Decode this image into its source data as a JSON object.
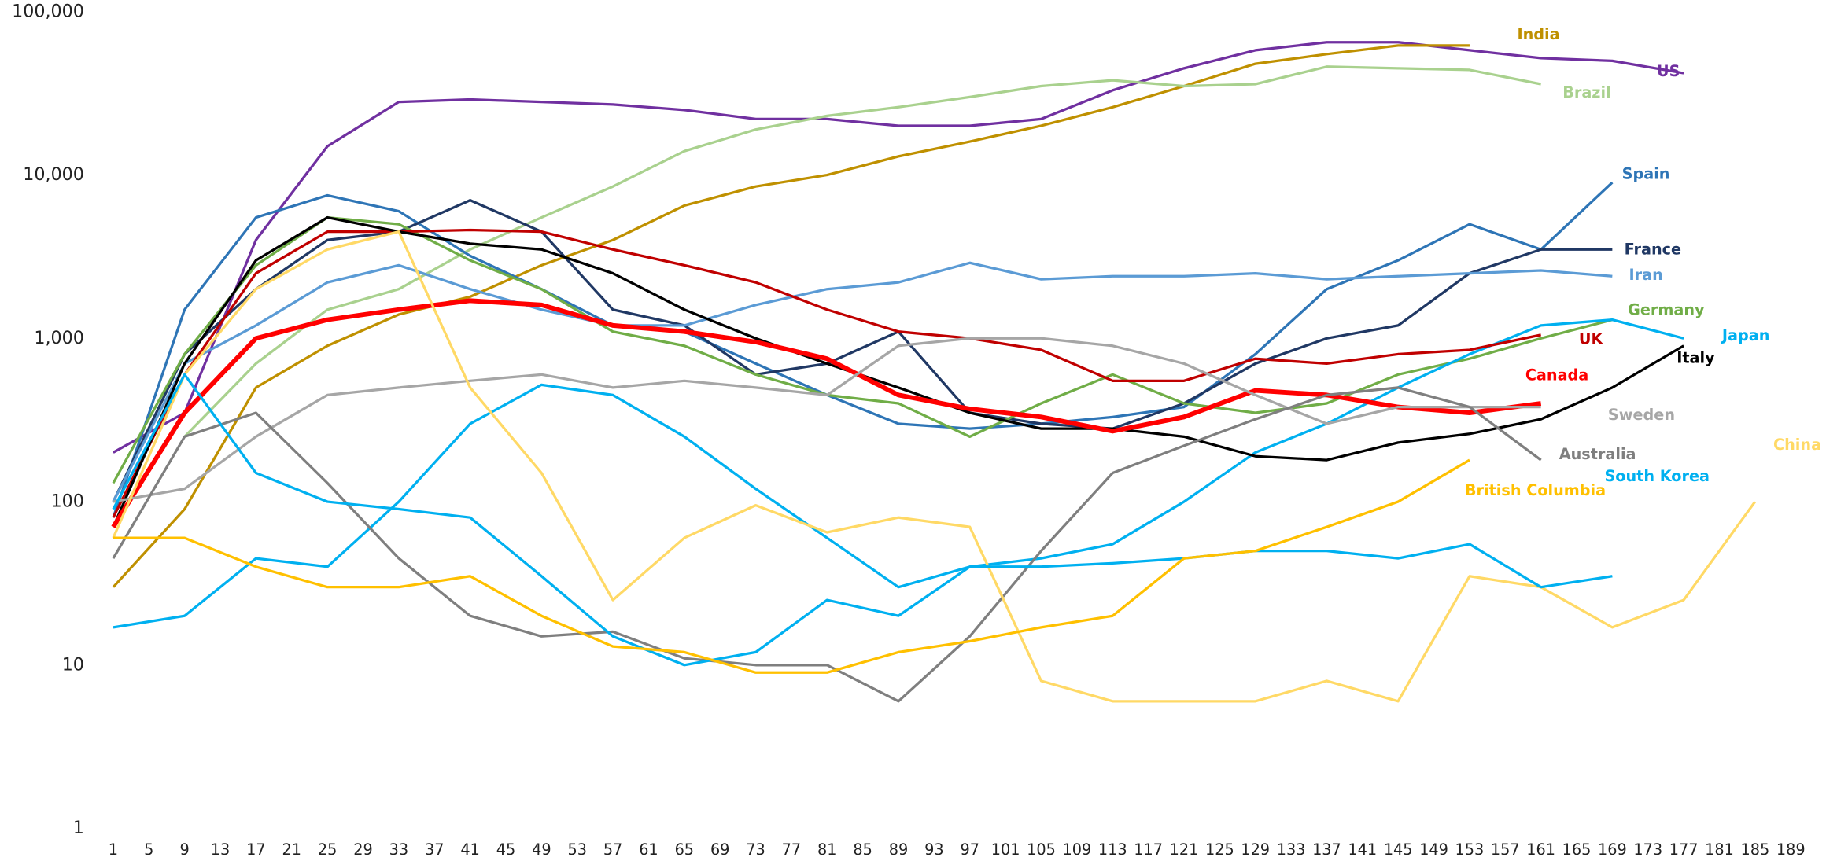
{
  "chart_data": {
    "type": "line",
    "log_scale": true,
    "x": [
      1,
      9,
      17,
      25,
      33,
      41,
      49,
      57,
      65,
      73,
      81,
      89,
      97,
      105,
      113,
      121,
      129,
      137,
      145,
      153,
      161,
      169,
      177,
      185
    ],
    "xlim": [
      1,
      189
    ],
    "xticks": [
      1,
      5,
      9,
      13,
      17,
      21,
      25,
      29,
      33,
      37,
      41,
      45,
      49,
      53,
      57,
      61,
      65,
      69,
      73,
      77,
      81,
      85,
      89,
      93,
      97,
      101,
      105,
      109,
      113,
      117,
      121,
      125,
      129,
      133,
      137,
      141,
      145,
      149,
      153,
      157,
      161,
      165,
      169,
      173,
      177,
      181,
      185,
      189
    ],
    "ylim": [
      1,
      100000
    ],
    "yticks": [
      1,
      10,
      100,
      {
        "value": 1000,
        "label": "1,000"
      },
      {
        "value": 10000,
        "label": "10,000"
      },
      {
        "value": 100000,
        "label": "100,000"
      }
    ],
    "series": [
      {
        "name": "US",
        "color": "#7030a0",
        "values": [
          200,
          350,
          4000,
          15000,
          28000,
          29000,
          28000,
          27000,
          25000,
          22000,
          22000,
          20000,
          20000,
          22000,
          33000,
          45000,
          58000,
          65000,
          65000,
          58000,
          52000,
          50000,
          42000,
          null
        ]
      },
      {
        "name": "India",
        "color": "#bf9000",
        "values": [
          30,
          90,
          500,
          900,
          1400,
          1800,
          2800,
          4000,
          6500,
          8500,
          10000,
          13000,
          16000,
          20000,
          26000,
          35000,
          48000,
          55000,
          62000,
          62000,
          null,
          null,
          null,
          null
        ]
      },
      {
        "name": "Brazil",
        "color": "#a9d18e",
        "values": [
          null,
          250,
          700,
          1500,
          2000,
          3500,
          5500,
          8500,
          14000,
          19000,
          23000,
          26000,
          30000,
          35000,
          38000,
          35000,
          36000,
          46000,
          45000,
          44000,
          36000,
          null,
          null,
          null
        ]
      },
      {
        "name": "Spain",
        "color": "#2e75b6",
        "values": [
          80,
          1500,
          5500,
          7500,
          6000,
          3200,
          2000,
          1200,
          1100,
          700,
          450,
          300,
          280,
          300,
          330,
          380,
          800,
          2000,
          3000,
          5000,
          3500,
          9000,
          null,
          null
        ]
      },
      {
        "name": "France",
        "color": "#203864",
        "values": [
          100,
          800,
          2000,
          4000,
          4500,
          7000,
          4500,
          1500,
          1200,
          600,
          700,
          1100,
          350,
          300,
          280,
          400,
          700,
          1000,
          1200,
          2500,
          3500,
          3500,
          null,
          null
        ]
      },
      {
        "name": "Iran",
        "color": "#5b9bd5",
        "values": [
          100,
          700,
          1200,
          2200,
          2800,
          2000,
          1500,
          1200,
          1200,
          1600,
          2000,
          2200,
          2900,
          2300,
          2400,
          2400,
          2500,
          2300,
          2400,
          2500,
          2600,
          2400,
          null,
          null
        ]
      },
      {
        "name": "Germany",
        "color": "#70ad47",
        "values": [
          130,
          800,
          2800,
          5500,
          5000,
          3000,
          2000,
          1100,
          900,
          600,
          450,
          400,
          250,
          400,
          600,
          400,
          350,
          400,
          600,
          750,
          1000,
          1300,
          null,
          null
        ]
      },
      {
        "name": "Japan",
        "color": "#00b0f0",
        "values": [
          17,
          20,
          45,
          40,
          100,
          300,
          520,
          450,
          250,
          120,
          60,
          30,
          40,
          45,
          55,
          100,
          200,
          300,
          500,
          800,
          1200,
          1300,
          1000,
          null
        ]
      },
      {
        "name": "UK",
        "color": "#c00000",
        "values": [
          80,
          600,
          2500,
          4500,
          4500,
          4600,
          4500,
          3500,
          2800,
          2200,
          1500,
          1100,
          1000,
          850,
          550,
          550,
          750,
          700,
          800,
          850,
          1050,
          null,
          null,
          null
        ]
      },
      {
        "name": "Italy",
        "color": "#000000",
        "values": [
          70,
          700,
          3000,
          5500,
          4500,
          3800,
          3500,
          2500,
          1500,
          1000,
          700,
          500,
          350,
          280,
          280,
          250,
          190,
          180,
          230,
          260,
          320,
          500,
          900,
          null
        ]
      },
      {
        "name": "Canada",
        "color": "#ff0000",
        "values": [
          70,
          350,
          1000,
          1300,
          1500,
          1700,
          1600,
          1200,
          1100,
          950,
          750,
          450,
          370,
          330,
          270,
          330,
          480,
          450,
          380,
          350,
          400,
          null,
          null,
          null
        ]
      },
      {
        "name": "Sweden",
        "color": "#a6a6a6",
        "values": [
          100,
          120,
          250,
          450,
          500,
          550,
          600,
          500,
          550,
          500,
          450,
          900,
          1000,
          1000,
          900,
          700,
          450,
          300,
          380,
          380,
          380,
          null,
          null,
          null
        ]
      },
      {
        "name": "Australia",
        "color": "#7f7f7f",
        "values": [
          45,
          250,
          350,
          130,
          45,
          20,
          15,
          16,
          11,
          10,
          10,
          6,
          15,
          50,
          150,
          220,
          320,
          450,
          500,
          380,
          180,
          null,
          null,
          null
        ]
      },
      {
        "name": "China",
        "color": "#ffd966",
        "values": [
          60,
          600,
          2000,
          3500,
          4500,
          500,
          150,
          25,
          60,
          95,
          65,
          80,
          70,
          8,
          6,
          6,
          6,
          8,
          6,
          35,
          30,
          17,
          25,
          100
        ]
      },
      {
        "name": "South Korea",
        "color": "#00b0f0",
        "values": [
          90,
          600,
          150,
          100,
          90,
          80,
          35,
          15,
          10,
          12,
          25,
          20,
          40,
          40,
          42,
          45,
          50,
          50,
          45,
          55,
          30,
          35,
          null,
          null
        ]
      },
      {
        "name": "British Columbia",
        "color": "#ffc000",
        "values": [
          60,
          60,
          40,
          30,
          30,
          35,
          20,
          13,
          12,
          9,
          9,
          12,
          14,
          17,
          20,
          45,
          50,
          70,
          100,
          180,
          null,
          null,
          null,
          null
        ]
      }
    ]
  }
}
